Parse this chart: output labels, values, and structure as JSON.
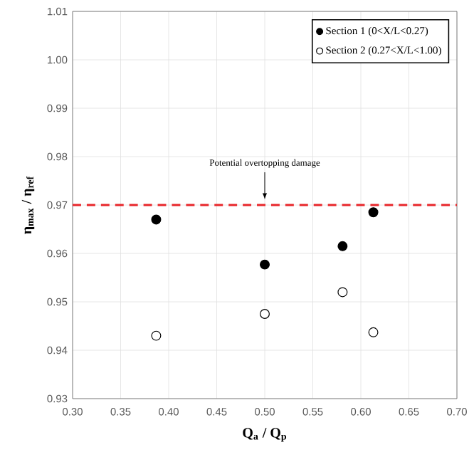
{
  "chart_data": {
    "type": "scatter",
    "xlabel": "Q$_{a}$ / Q$_{p}$",
    "ylabel": "η$_{max}$ / η$_{ref}$",
    "xlim": [
      0.3,
      0.7
    ],
    "xticks": [
      {
        "value": 0.3,
        "label": "0.30"
      },
      {
        "value": 0.35,
        "label": "0.35"
      },
      {
        "value": 0.4,
        "label": "0.40"
      },
      {
        "value": 0.45,
        "label": "0.45"
      },
      {
        "value": 0.5,
        "label": "0.50"
      },
      {
        "value": 0.55,
        "label": "0.55"
      },
      {
        "value": 0.6,
        "label": "0.60"
      },
      {
        "value": 0.65,
        "label": "0.65"
      },
      {
        "value": 0.7,
        "label": "0.70"
      }
    ],
    "ylim": [
      0.93,
      1.01
    ],
    "yticks": [
      {
        "value": 0.93,
        "label": "0.93"
      },
      {
        "value": 0.94,
        "label": "0.94"
      },
      {
        "value": 0.95,
        "label": "0.95"
      },
      {
        "value": 0.96,
        "label": "0.96"
      },
      {
        "value": 0.97,
        "label": "0.97"
      },
      {
        "value": 0.98,
        "label": "0.98"
      },
      {
        "value": 0.99,
        "label": "0.99"
      },
      {
        "value": 1.0,
        "label": "1.00"
      },
      {
        "value": 1.01,
        "label": "1.01"
      }
    ],
    "grid": true,
    "legend": "top right",
    "marker": "circle",
    "series": [
      {
        "name": "Section 1 (0<X/L<0.27)",
        "color": "#000000",
        "x": [
          0.387,
          0.5,
          0.581,
          0.613
        ],
        "values": [
          0.967,
          0.9577,
          0.9615,
          0.9685
        ]
      },
      {
        "name": "Section 2 (0.27<X/L<1.00)",
        "color": "#ffffff",
        "x": [
          0.387,
          0.5,
          0.581,
          0.613
        ],
        "values": [
          0.943,
          0.9475,
          0.952,
          0.9437
        ]
      }
    ],
    "ref_lines": [
      {
        "axis": "y",
        "value": 0.97,
        "color": "#e8262a",
        "line_style": "dashed"
      }
    ],
    "annotations": [
      {
        "text": "Potential overtopping damage",
        "x": 0.5,
        "y": 0.97
      }
    ]
  }
}
